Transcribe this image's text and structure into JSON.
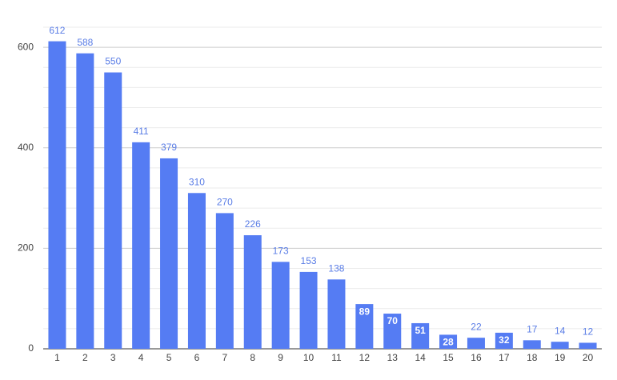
{
  "chart_data": {
    "type": "bar",
    "categories": [
      "1",
      "2",
      "3",
      "4",
      "5",
      "6",
      "7",
      "8",
      "9",
      "10",
      "11",
      "12",
      "13",
      "14",
      "15",
      "16",
      "17",
      "18",
      "19",
      "20"
    ],
    "values": [
      612,
      588,
      550,
      411,
      379,
      310,
      270,
      226,
      173,
      153,
      138,
      89,
      70,
      51,
      28,
      22,
      32,
      17,
      14,
      12
    ],
    "value_label_inside": [
      false,
      false,
      false,
      false,
      false,
      false,
      false,
      false,
      false,
      false,
      false,
      true,
      true,
      true,
      true,
      false,
      true,
      false,
      false,
      false
    ],
    "color": "#557cf3",
    "ylim": [
      0,
      640
    ],
    "yticks": [
      0,
      200,
      400,
      600
    ],
    "minor_yticks": [
      40,
      80,
      120,
      160,
      240,
      280,
      320,
      360,
      440,
      480,
      520,
      560,
      640
    ],
    "grid": true
  }
}
